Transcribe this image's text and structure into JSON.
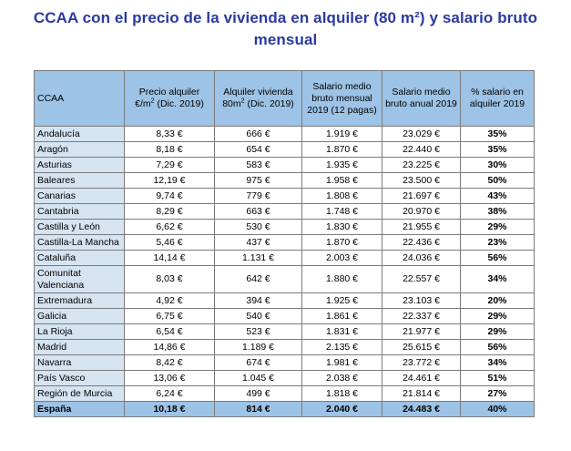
{
  "title": {
    "line1": "CCAA con el precio de la vivienda en alquiler (80 m²) y salario bruto",
    "line2": "mensual"
  },
  "headers": {
    "ccaa": "CCAA",
    "precio_a": "Precio alquiler",
    "precio_b": "€/m",
    "precio_sup": "2",
    "precio_c": " (Dic. 2019)",
    "alquiler_a": "Alquiler vivienda",
    "alquiler_b": "80m",
    "alquiler_sup": "2",
    "alquiler_c": " (Dic. 2019)",
    "salario_mensual": "Salario medio bruto mensual 2019 (12 pagas)",
    "salario_anual": "Salario medio bruto anual 2019",
    "pct": "% salario en alquiler 2019"
  },
  "rows": [
    {
      "ccaa": "Andalucía",
      "precio": "8,33 €",
      "alquiler": "666 €",
      "mensual": "1.919 €",
      "anual": "23.029 €",
      "pct": "35%"
    },
    {
      "ccaa": "Aragón",
      "precio": "8,18 €",
      "alquiler": "654 €",
      "mensual": "1.870 €",
      "anual": "22.440 €",
      "pct": "35%"
    },
    {
      "ccaa": "Asturias",
      "precio": "7,29 €",
      "alquiler": "583 €",
      "mensual": "1.935 €",
      "anual": "23.225 €",
      "pct": "30%"
    },
    {
      "ccaa": "Baleares",
      "precio": "12,19 €",
      "alquiler": "975 €",
      "mensual": "1.958 €",
      "anual": "23.500 €",
      "pct": "50%"
    },
    {
      "ccaa": "Canarias",
      "precio": "9,74 €",
      "alquiler": "779 €",
      "mensual": "1.808 €",
      "anual": "21.697 €",
      "pct": "43%"
    },
    {
      "ccaa": "Cantabria",
      "precio": "8,29 €",
      "alquiler": "663 €",
      "mensual": "1.748 €",
      "anual": "20.970 €",
      "pct": "38%"
    },
    {
      "ccaa": "Castilla y León",
      "precio": "6,62 €",
      "alquiler": "530 €",
      "mensual": "1.830 €",
      "anual": "21.955 €",
      "pct": "29%"
    },
    {
      "ccaa": "Castilla-La Mancha",
      "precio": "5,46 €",
      "alquiler": "437 €",
      "mensual": "1.870 €",
      "anual": "22.436 €",
      "pct": "23%"
    },
    {
      "ccaa": "Cataluña",
      "precio": "14,14 €",
      "alquiler": "1.131 €",
      "mensual": "2.003 €",
      "anual": "24.036 €",
      "pct": "56%"
    },
    {
      "ccaa": "Comunitat Valenciana",
      "precio": "8,03 €",
      "alquiler": "642 €",
      "mensual": "1.880 €",
      "anual": "22.557 €",
      "pct": "34%",
      "tall": true
    },
    {
      "ccaa": "Extremadura",
      "precio": "4,92 €",
      "alquiler": "394 €",
      "mensual": "1.925 €",
      "anual": "23.103 €",
      "pct": "20%"
    },
    {
      "ccaa": "Galicia",
      "precio": "6,75 €",
      "alquiler": "540 €",
      "mensual": "1.861 €",
      "anual": "22.337 €",
      "pct": "29%"
    },
    {
      "ccaa": "La Rioja",
      "precio": "6,54 €",
      "alquiler": "523 €",
      "mensual": "1.831 €",
      "anual": "21.977 €",
      "pct": "29%"
    },
    {
      "ccaa": "Madrid",
      "precio": "14,86 €",
      "alquiler": "1.189 €",
      "mensual": "2.135 €",
      "anual": "25.615 €",
      "pct": "56%"
    },
    {
      "ccaa": "Navarra",
      "precio": "8,42 €",
      "alquiler": "674 €",
      "mensual": "1.981 €",
      "anual": "23.772 €",
      "pct": "34%"
    },
    {
      "ccaa": "País Vasco",
      "precio": "13,06 €",
      "alquiler": "1.045 €",
      "mensual": "2.038 €",
      "anual": "24.461 €",
      "pct": "51%"
    },
    {
      "ccaa": "Región de Murcia",
      "precio": "6,24 €",
      "alquiler": "499 €",
      "mensual": "1.818 €",
      "anual": "21.814 €",
      "pct": "27%"
    }
  ],
  "total": {
    "ccaa": "España",
    "precio": "10,18 €",
    "alquiler": "814 €",
    "mensual": "2.040 €",
    "anual": "24.483 €",
    "pct": "40%"
  },
  "colors": {
    "title": "#2b3aa0",
    "header_bg": "#9dc3e6",
    "region_bg": "#d6e4f2"
  }
}
